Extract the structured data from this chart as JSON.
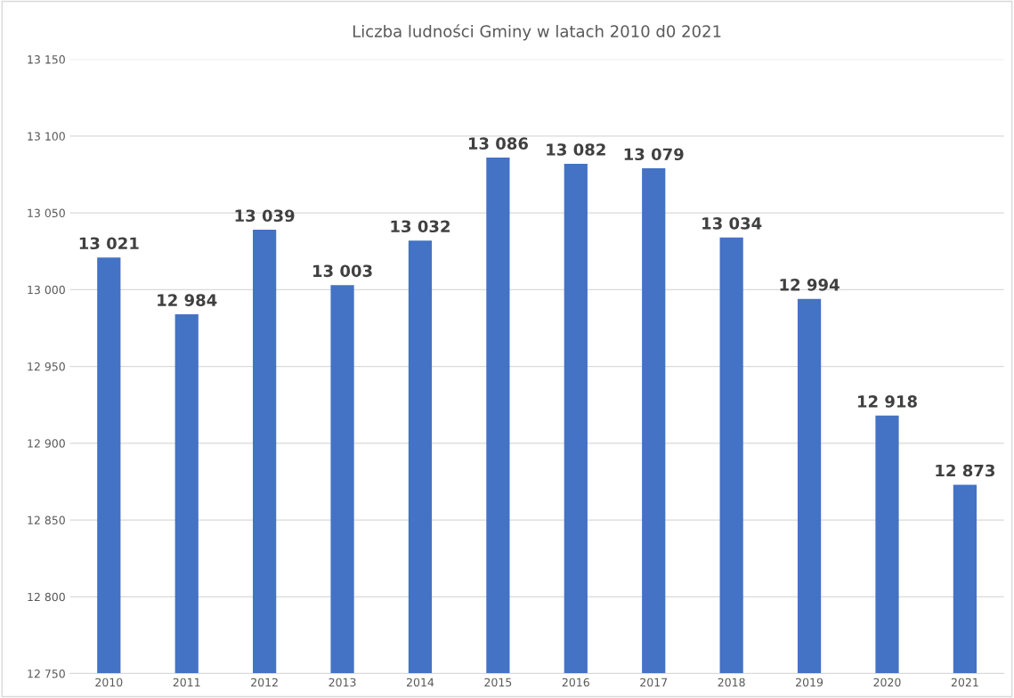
{
  "chart_data": {
    "type": "bar",
    "title": "Liczba ludności Gminy w latach 2010 d0 2021",
    "categories": [
      "2010",
      "2011",
      "2012",
      "2013",
      "2014",
      "2015",
      "2016",
      "2017",
      "2018",
      "2019",
      "2020",
      "2021"
    ],
    "values": [
      13021,
      12984,
      13039,
      13003,
      13032,
      13086,
      13082,
      13079,
      13034,
      12994,
      12918,
      12873
    ],
    "value_labels": [
      "13 021",
      "12 984",
      "13 039",
      "13 003",
      "13 032",
      "13 086",
      "13 082",
      "13 079",
      "13 034",
      "12 994",
      "12 918",
      "12 873"
    ],
    "color": "#4472c4",
    "ylim": [
      12750,
      13150
    ],
    "yticks": [
      {
        "value": 12750,
        "label": "12 750"
      },
      {
        "value": 12800,
        "label": "12 800"
      },
      {
        "value": 12850,
        "label": "12 850"
      },
      {
        "value": 12900,
        "label": "12 900"
      },
      {
        "value": 12950,
        "label": "12 950"
      },
      {
        "value": 13000,
        "label": "13 000"
      },
      {
        "value": 13050,
        "label": "13 050"
      },
      {
        "value": 13100,
        "label": "13 100"
      },
      {
        "value": 13150,
        "label": "13 150"
      }
    ],
    "grid": "y",
    "legend": false
  }
}
